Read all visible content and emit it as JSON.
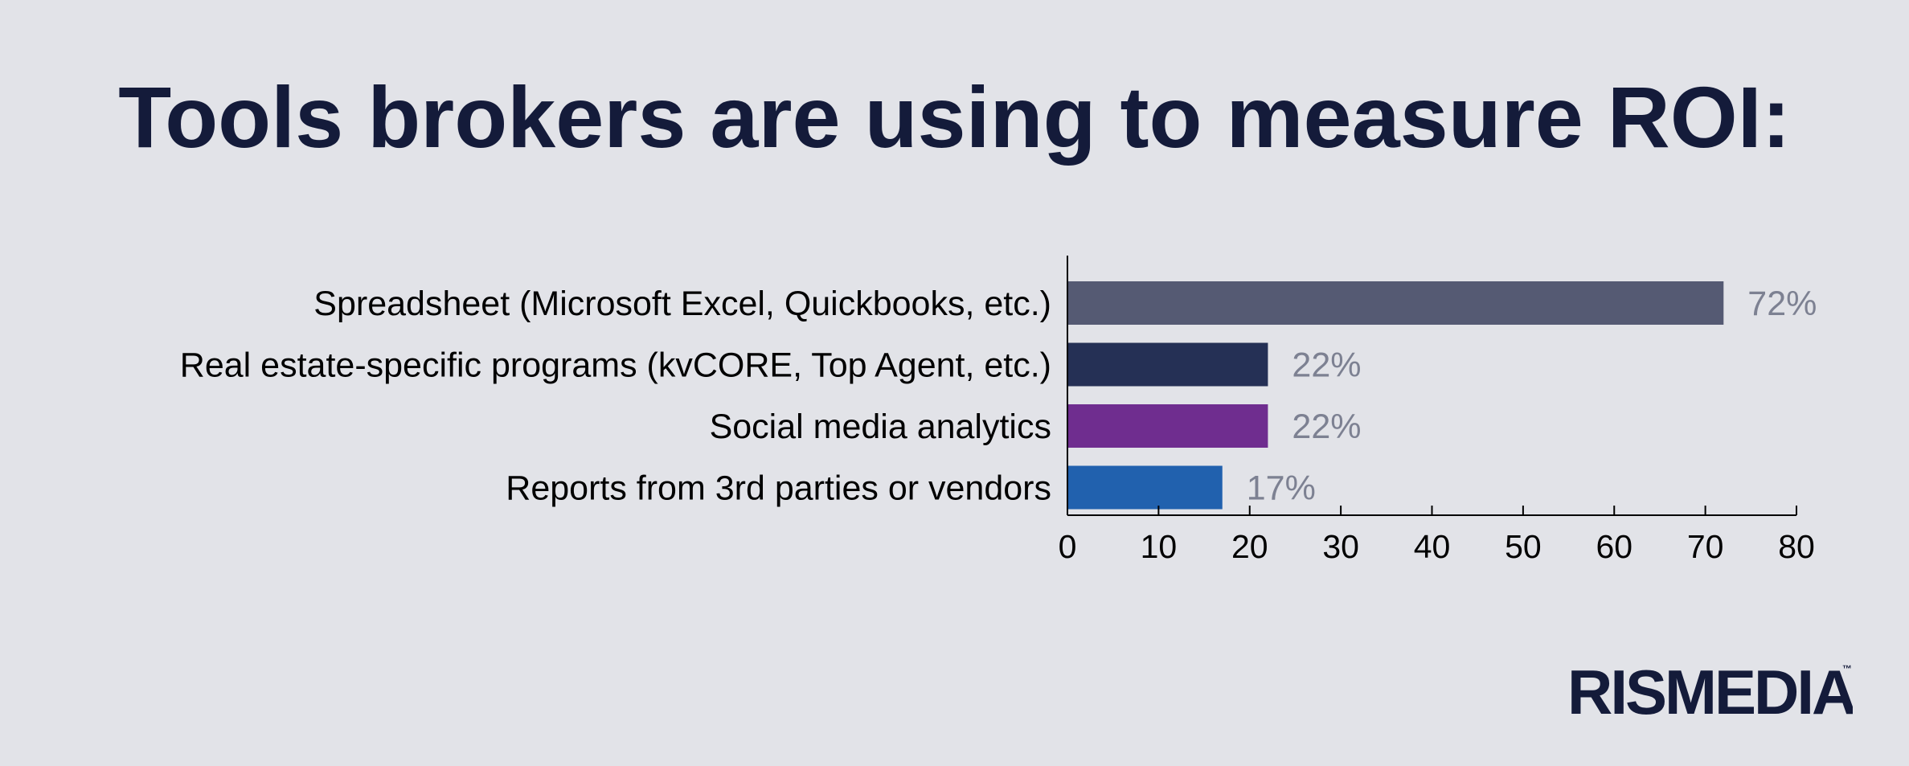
{
  "title": "Tools brokers are using to measure ROI:",
  "chart_data": {
    "type": "bar",
    "orientation": "horizontal",
    "title": "Tools brokers are using to measure ROI:",
    "categories": [
      "Spreadsheet (Microsoft Excel, Quickbooks, etc.)",
      "Real estate-specific programs (kvCORE, Top Agent, etc.)",
      "Social media analytics",
      "Reports from 3rd parties or vendors"
    ],
    "values": [
      72,
      22,
      22,
      17
    ],
    "value_labels": [
      "72%",
      "22%",
      "22%",
      "17%"
    ],
    "colors": [
      "#555a73",
      "#253055",
      "#6f2d8f",
      "#2161ae"
    ],
    "xlim": [
      0,
      80
    ],
    "xticks": [
      "0",
      "10",
      "20",
      "30",
      "40",
      "50",
      "60",
      "70",
      "80"
    ],
    "xlabel": "",
    "ylabel": "",
    "grid": false,
    "legend": "none"
  },
  "logo": {
    "text": "RISMEDIA",
    "tm": "™"
  }
}
